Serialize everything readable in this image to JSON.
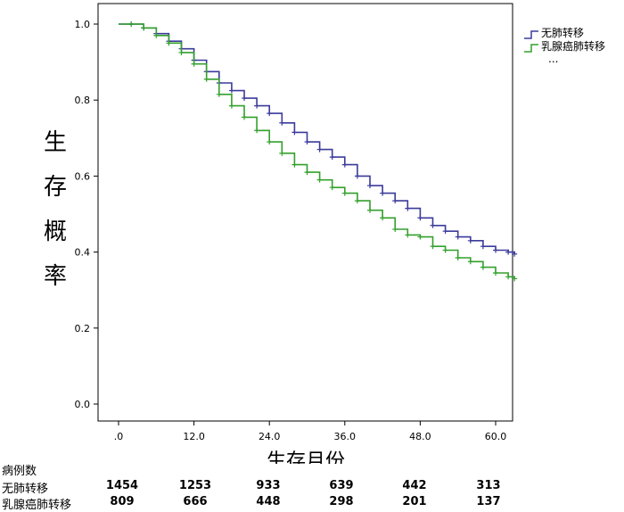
{
  "chart_data": {
    "type": "line",
    "xlabel": "生存月份",
    "ylabel": [
      "生",
      "存",
      "概",
      "率"
    ],
    "xlim": [
      0,
      63
    ],
    "ylim": [
      0,
      1.05
    ],
    "x_ticks": [
      0,
      12,
      24,
      36,
      48,
      60
    ],
    "x_tick_labels": [
      ".0",
      "12.0",
      "24.0",
      "36.0",
      "48.0",
      "60.0"
    ],
    "y_ticks": [
      0,
      0.2,
      0.4,
      0.6,
      0.8,
      1.0
    ],
    "y_tick_labels": [
      "0.0",
      "0.2",
      "0.4",
      "0.6",
      "0.8",
      "1.0"
    ],
    "legend_position": "top-right, outside plot",
    "legend_extra": "...",
    "series": [
      {
        "name": "无肺转移",
        "color": "#3b3b9b",
        "x": [
          0,
          2,
          4,
          6,
          8,
          10,
          12,
          14,
          16,
          18,
          20,
          22,
          24,
          26,
          28,
          30,
          32,
          34,
          36,
          38,
          40,
          42,
          44,
          46,
          48,
          50,
          52,
          54,
          56,
          58,
          60,
          62,
          63
        ],
        "y": [
          1.0,
          1.0,
          0.99,
          0.975,
          0.955,
          0.935,
          0.905,
          0.875,
          0.845,
          0.825,
          0.805,
          0.785,
          0.765,
          0.74,
          0.715,
          0.69,
          0.67,
          0.65,
          0.63,
          0.6,
          0.575,
          0.555,
          0.535,
          0.515,
          0.49,
          0.47,
          0.455,
          0.44,
          0.43,
          0.415,
          0.405,
          0.4,
          0.395
        ]
      },
      {
        "name": "乳腺癌肺转移",
        "color": "#33a02c",
        "x": [
          0,
          2,
          4,
          6,
          8,
          10,
          12,
          14,
          16,
          18,
          20,
          22,
          24,
          26,
          28,
          30,
          32,
          34,
          36,
          38,
          40,
          42,
          44,
          46,
          48,
          50,
          52,
          54,
          56,
          58,
          60,
          62,
          63
        ],
        "y": [
          1.0,
          1.0,
          0.99,
          0.97,
          0.95,
          0.925,
          0.895,
          0.855,
          0.815,
          0.785,
          0.755,
          0.72,
          0.69,
          0.66,
          0.63,
          0.61,
          0.59,
          0.57,
          0.555,
          0.535,
          0.51,
          0.49,
          0.46,
          0.445,
          0.44,
          0.415,
          0.405,
          0.385,
          0.375,
          0.36,
          0.345,
          0.335,
          0.33
        ]
      }
    ]
  },
  "risk_table": {
    "title": "病例数",
    "rows": [
      {
        "label": "无肺转移",
        "values": [
          "1454",
          "1253",
          "933",
          "639",
          "442",
          "313"
        ]
      },
      {
        "label": "乳腺癌肺转移",
        "values": [
          "809",
          "666",
          "448",
          "298",
          "201",
          "137"
        ]
      }
    ]
  }
}
